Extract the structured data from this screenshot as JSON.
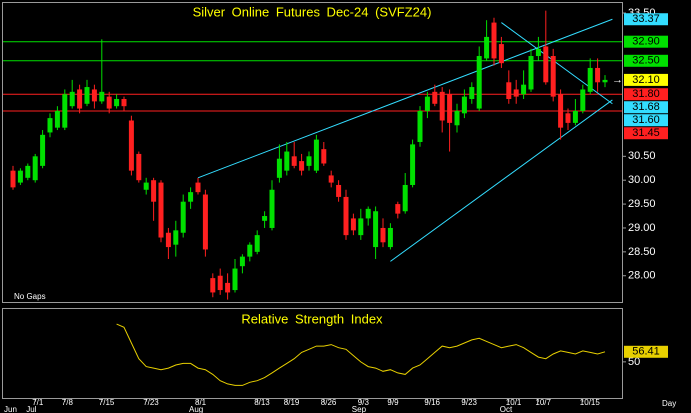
{
  "chart_data": [
    {
      "type": "candlestick",
      "title": "Silver Online Futures Dec-24 (SVFZ24)",
      "note": "No Gaps",
      "x_label": "Day",
      "categories": [
        null,
        null,
        null,
        "7/1",
        null,
        null,
        null,
        "7/8",
        null,
        null,
        null,
        null,
        "7/15",
        null,
        null,
        null,
        null,
        null,
        "7/23",
        null,
        null,
        null,
        null,
        null,
        null,
        "8/1",
        null,
        null,
        null,
        null,
        null,
        null,
        null,
        "8/13",
        null,
        null,
        null,
        "8/19",
        null,
        null,
        null,
        null,
        "8/26",
        null,
        null,
        null,
        null,
        "9/3",
        null,
        null,
        null,
        "9/9",
        null,
        null,
        null,
        null,
        "9/16",
        null,
        null,
        null,
        null,
        "9/23",
        null,
        null,
        null,
        null,
        null,
        "10/1",
        null,
        null,
        null,
        "10/7",
        null,
        null,
        null,
        null,
        null,
        "10/15",
        null,
        null,
        null
      ],
      "month_labels": [
        {
          "value": 0,
          "label": "Jun"
        },
        {
          "value": 3,
          "label": "Jul"
        },
        {
          "value": 25,
          "label": "Aug"
        },
        {
          "value": 47,
          "label": "Sep"
        },
        {
          "value": 67,
          "label": "Oct"
        }
      ],
      "open": [
        30.2,
        29.95,
        30.05,
        30.0,
        30.3,
        31.0,
        31.1,
        31.1,
        31.55,
        31.9,
        31.6,
        31.9,
        31.65,
        31.75,
        31.55,
        31.7,
        31.25,
        30.55,
        29.8,
        30.0,
        29.95,
        28.9,
        28.65,
        28.9,
        29.55,
        29.95,
        29.7,
        27.95,
        28.0,
        27.85,
        27.7,
        28.2,
        28.4,
        28.5,
        29.15,
        29.0,
        30.05,
        30.2,
        30.5,
        30.4,
        30.3,
        30.2,
        30.65,
        30.1,
        29.9,
        29.65,
        29.2,
        28.85,
        29.2,
        28.6,
        29.0,
        28.6,
        29.5,
        29.35,
        29.9,
        30.8,
        31.45,
        31.85,
        31.85,
        31.8,
        31.15,
        31.4,
        31.7,
        31.5,
        32.55,
        33.3,
        32.85,
        32.05,
        31.9,
        31.8,
        31.9,
        32.6,
        32.8,
        32.6,
        31.8,
        31.4,
        31.2,
        31.45,
        31.85,
        32.35,
        32.05
      ],
      "high": [
        30.3,
        30.25,
        30.35,
        30.55,
        31.05,
        31.4,
        31.55,
        31.9,
        32.1,
        32.0,
        32.1,
        32.0,
        32.95,
        31.85,
        31.8,
        31.75,
        31.35,
        30.6,
        30.05,
        30.05,
        30.0,
        29.0,
        29.15,
        29.7,
        29.85,
        30.05,
        29.8,
        28.05,
        28.15,
        28.05,
        28.35,
        28.45,
        28.7,
        28.95,
        29.35,
        30.0,
        30.75,
        30.8,
        30.8,
        30.55,
        30.6,
        30.95,
        30.8,
        30.2,
        30.0,
        29.8,
        29.3,
        29.4,
        29.45,
        29.45,
        29.2,
        29.1,
        29.55,
        30.15,
        30.85,
        31.55,
        31.85,
        32.0,
        31.95,
        31.9,
        31.6,
        31.9,
        32.05,
        32.8,
        33.35,
        33.4,
        33.0,
        32.3,
        32.1,
        32.3,
        32.75,
        33.0,
        33.55,
        32.75,
        31.9,
        31.5,
        31.7,
        32.0,
        32.55,
        32.55,
        32.2
      ],
      "low": [
        29.8,
        29.9,
        30.0,
        29.95,
        30.25,
        30.9,
        31.05,
        31.05,
        31.5,
        31.4,
        31.55,
        31.5,
        31.6,
        31.4,
        31.5,
        31.45,
        30.1,
        29.95,
        29.7,
        29.15,
        28.7,
        28.35,
        28.4,
        28.8,
        29.4,
        29.7,
        28.4,
        27.55,
        27.6,
        27.5,
        27.65,
        28.05,
        28.3,
        28.45,
        29.0,
        28.95,
        29.95,
        30.1,
        30.25,
        30.1,
        30.2,
        30.15,
        30.3,
        29.85,
        29.55,
        28.75,
        28.85,
        28.75,
        29.05,
        28.35,
        28.6,
        28.55,
        29.2,
        29.3,
        29.85,
        30.7,
        31.3,
        31.55,
        31.0,
        30.6,
        31.0,
        31.3,
        31.6,
        31.45,
        32.5,
        32.4,
        32.35,
        31.6,
        31.6,
        31.7,
        31.85,
        32.5,
        32.0,
        31.65,
        30.85,
        31.05,
        31.15,
        31.4,
        31.8,
        31.85,
        31.95
      ],
      "close": [
        29.85,
        30.2,
        30.3,
        30.5,
        30.95,
        31.3,
        31.45,
        31.8,
        31.85,
        31.5,
        31.95,
        31.65,
        31.85,
        31.5,
        31.7,
        31.55,
        30.2,
        30.0,
        29.95,
        29.55,
        28.8,
        28.6,
        28.95,
        29.55,
        29.75,
        29.75,
        28.55,
        27.65,
        27.7,
        27.65,
        28.15,
        28.4,
        28.65,
        28.85,
        29.25,
        29.8,
        30.45,
        30.6,
        30.3,
        30.2,
        30.5,
        30.85,
        30.35,
        29.95,
        29.65,
        28.85,
        28.95,
        29.2,
        29.4,
        29.35,
        28.7,
        29.0,
        29.3,
        29.9,
        30.75,
        31.45,
        31.75,
        31.6,
        31.25,
        31.2,
        31.45,
        31.75,
        31.95,
        32.6,
        33.0,
        32.55,
        32.45,
        31.7,
        31.75,
        32.0,
        32.6,
        32.75,
        32.05,
        31.75,
        31.1,
        31.2,
        31.45,
        31.9,
        32.35,
        32.05,
        32.1
      ],
      "up_color": "#00e000",
      "down_color": "#ff2020",
      "ylim": [
        27.45,
        33.71
      ],
      "yticks": [
        {
          "value": 28,
          "label": "28.00"
        },
        {
          "value": 28.5,
          "label": "28.50"
        },
        {
          "value": 29,
          "label": "29.00"
        },
        {
          "value": 29.5,
          "label": "29.50"
        },
        {
          "value": 30,
          "label": "30.00"
        },
        {
          "value": 30.5,
          "label": "30.50"
        },
        {
          "value": 33.5,
          "label": "33.50"
        }
      ],
      "last_price": {
        "value": 32.1,
        "label": "32.10",
        "color": "#ffff00"
      },
      "levels": [
        {
          "value": 32.9,
          "label": "32.90",
          "color": "#00e000"
        },
        {
          "value": 32.5,
          "label": "32.50",
          "color": "#00e000"
        },
        {
          "value": 31.8,
          "label": "31.80",
          "color": "#ff2020"
        },
        {
          "value": 31.45,
          "label": "31.45",
          "color": "#ff2020"
        }
      ],
      "trendlines": [
        {
          "start": [
            25,
            30.05
          ],
          "end": [
            81,
            33.37
          ],
          "label": "33.37",
          "color": "#33ddff"
        },
        {
          "start": [
            51,
            28.3
          ],
          "end": [
            81,
            31.68
          ],
          "label": "31.68",
          "color": "#33ddff"
        },
        {
          "start": [
            66,
            33.3
          ],
          "end": [
            81,
            31.6
          ],
          "label": "31.60",
          "color": "#33ddff"
        }
      ]
    },
    {
      "type": "line",
      "title": "Relative Strength Index",
      "color": "#e8d000",
      "values": [
        null,
        null,
        null,
        null,
        null,
        null,
        null,
        null,
        null,
        null,
        null,
        null,
        null,
        null,
        74,
        72,
        62,
        52,
        47,
        46,
        45,
        46,
        48,
        49,
        49,
        46,
        45,
        42,
        38,
        36,
        35,
        35,
        37,
        38,
        40,
        43,
        46,
        49,
        52,
        56,
        58,
        60,
        60,
        61,
        59,
        58,
        54,
        50,
        47,
        46,
        44,
        45,
        43,
        42,
        46,
        48,
        52,
        56,
        60,
        59,
        60,
        62,
        64,
        65,
        63,
        61,
        59,
        60,
        61,
        59,
        56,
        53,
        52,
        55,
        57,
        56,
        55,
        57,
        56,
        55,
        56.41
      ],
      "ylim": [
        27,
        83
      ],
      "yticks": [
        50
      ]
    }
  ]
}
